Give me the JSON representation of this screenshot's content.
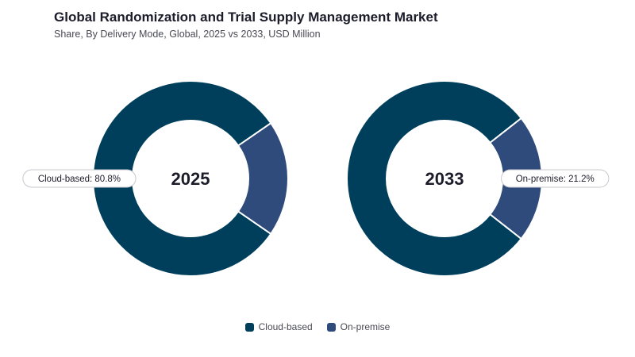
{
  "header": {
    "title": "Global Randomization and Trial Supply Management Market",
    "subtitle": "Share, By Delivery Mode, Global, 2025 vs 2033, USD Million"
  },
  "colors": {
    "cloud": "#003f5c",
    "premise": "#2f4b7c"
  },
  "chart_data": [
    {
      "type": "pie",
      "center_label": "2025",
      "categories": [
        "Cloud-based",
        "On-premise"
      ],
      "values": [
        80.8,
        19.2
      ],
      "unit": "%",
      "callout": "Cloud-based: 80.8%"
    },
    {
      "type": "pie",
      "center_label": "2033",
      "categories": [
        "Cloud-based",
        "On-premise"
      ],
      "values": [
        78.8,
        21.2
      ],
      "unit": "%",
      "callout": "On-premise: 21.2%"
    }
  ],
  "legend": [
    {
      "label": "Cloud-based",
      "color": "#003f5c"
    },
    {
      "label": "On-premise",
      "color": "#2f4b7c"
    }
  ]
}
